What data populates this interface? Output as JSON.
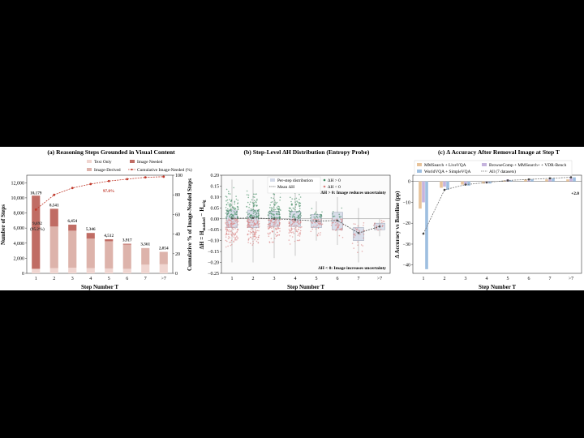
{
  "colors": {
    "text_only": "#f0d5d0",
    "image_derived": "#ddb3ab",
    "image_needed": "#c06c64",
    "cumulative": "#c0392b",
    "box_fill": "#d4dae8",
    "pos_points": "#3d8a5f",
    "neg_points": "#d98080",
    "mean_line": "#555555",
    "mmsearch": "#e7c39a",
    "browsecomp": "#c5b3dd",
    "worldvqa": "#9ebfe0",
    "all_line": "#777777"
  },
  "chart_data": [
    {
      "type": "bar",
      "title": "(a) Reasoning Steps Grounded in Visual Content",
      "xlabel": "Step Number T",
      "ylabel": "Number of Steps",
      "ylabel_right": "Cumulative % of Image-Needed Steps",
      "categories": [
        "1",
        "2",
        "3",
        "4",
        "5",
        "6",
        "7",
        ">7"
      ],
      "ylim": [
        0,
        13000
      ],
      "y_ticks": [
        "0",
        "2,000",
        "4,000",
        "6,000",
        "8,000",
        "10,000",
        "12,000"
      ],
      "y2lim": [
        0,
        100
      ],
      "y2_ticks": [
        "0",
        "20",
        "40",
        "60",
        "80",
        "100"
      ],
      "totals": [
        10179,
        8541,
        6454,
        5346,
        4512,
        3917,
        3361,
        2854
      ],
      "total_labels": [
        "10,179",
        "8,541",
        "6,454",
        "5,346",
        "4,512",
        "3,917",
        "3,361",
        "2,854"
      ],
      "series": [
        {
          "name": "Text Only",
          "values": [
            600,
            700,
            750,
            700,
            650,
            600,
            1150,
            1200
          ]
        },
        {
          "name": "Image-Derived",
          "values": [
            0,
            5500,
            4900,
            3900,
            3600,
            3200,
            2200,
            1650
          ]
        },
        {
          "name": "Image Needed",
          "values": [
            9692,
            2350,
            800,
            750,
            260,
            120,
            0,
            0
          ]
        }
      ],
      "cumulative": {
        "name": "Cumulative Image-Needed (%)",
        "values": [
          65,
          80,
          87,
          91,
          94,
          96,
          97.8,
          98.5
        ]
      },
      "annotations": [
        "9,692",
        "(95.2%)",
        "97.8%"
      ],
      "legend": "top-right"
    },
    {
      "type": "scatter",
      "title": "(b) Step-Level ΔH Distribution (Entropy Probe)",
      "xlabel": "Step Number T",
      "ylabel": "ΔH = H_masked − H_orig",
      "ylabel_main": "ΔH = H",
      "ylabel_sub1": "masked",
      "ylabel_mid": " − H",
      "ylabel_sub2": "orig",
      "categories": [
        "1",
        "2",
        "3",
        "4",
        "5",
        "6",
        "7",
        ">7"
      ],
      "ylim": [
        -0.25,
        0.2
      ],
      "y_ticks": [
        "−0.25",
        "−0.20",
        "−0.15",
        "−0.10",
        "−0.05",
        "0.00",
        "0.05",
        "0.10",
        "0.15",
        "0.20"
      ],
      "mean": {
        "name": "Mean ΔH",
        "values": [
          0.002,
          0.004,
          0.0,
          -0.004,
          -0.01,
          -0.008,
          -0.065,
          -0.035
        ]
      },
      "boxes": [
        {
          "q1": -0.04,
          "q3": 0.04,
          "lo": -0.2,
          "hi": 0.18
        },
        {
          "q1": -0.04,
          "q3": 0.04,
          "lo": -0.2,
          "hi": 0.18
        },
        {
          "q1": -0.035,
          "q3": 0.035,
          "lo": -0.18,
          "hi": 0.16
        },
        {
          "q1": -0.035,
          "q3": 0.035,
          "lo": -0.17,
          "hi": 0.15
        },
        {
          "q1": -0.04,
          "q3": 0.02,
          "lo": -0.1,
          "hi": 0.08
        },
        {
          "q1": -0.05,
          "q3": 0.03,
          "lo": -0.12,
          "hi": 0.1
        },
        {
          "q1": -0.1,
          "q3": -0.04,
          "lo": -0.2,
          "hi": 0.05
        },
        {
          "q1": -0.05,
          "q3": -0.02,
          "lo": -0.08,
          "hi": 0.0
        }
      ],
      "point_counts": [
        220,
        200,
        170,
        150,
        60,
        50,
        30,
        20
      ],
      "legend_items": [
        "Per-step distribution",
        "Mean ΔH",
        "ΔH > 0",
        "ΔH < 0"
      ],
      "annotations": [
        "ΔH > 0: Image reduces uncertainty",
        "ΔH < 0: Image increases uncertainty"
      ]
    },
    {
      "type": "bar",
      "title": "(c) Δ Accuracy After Removal Image at Step T",
      "xlabel": "Step Number T",
      "ylabel": "Δ Accuracy vs Baseline (pp)",
      "categories": [
        "1",
        "2",
        "3",
        "4",
        "5",
        "6",
        "7",
        ">7"
      ],
      "ylim": [
        -44,
        3
      ],
      "y_ticks": [
        "−40",
        "−30",
        "−20",
        "−10",
        "0"
      ],
      "series": [
        {
          "name": "MMSearch + LiveVQA",
          "values": [
            -13,
            -3,
            -1.5,
            -1,
            0.5,
            1,
            1,
            1
          ]
        },
        {
          "name": "BrowseComp + MMSearch+ + VDR-Bench",
          "values": [
            -10,
            -2.5,
            -1.5,
            -0.8,
            1,
            0.5,
            1,
            1.5
          ]
        },
        {
          "name": "WorldVQA + SimpleVQA",
          "values": [
            -42,
            -4,
            -2,
            -1,
            0.5,
            1,
            1.5,
            2
          ]
        },
        {
          "name": "All (7 datasets)",
          "values": [
            -25,
            -4,
            -1.5,
            -0.5,
            0.5,
            1,
            1.5,
            2
          ]
        }
      ],
      "annotations": [
        "+2.0"
      ]
    }
  ]
}
